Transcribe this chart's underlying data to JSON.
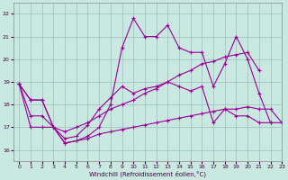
{
  "xlabel": "Windchill (Refroidissement éolien,°C)",
  "xlim": [
    -0.5,
    23
  ],
  "ylim": [
    15.5,
    22.5
  ],
  "yticks": [
    16,
    17,
    18,
    19,
    20,
    21,
    22
  ],
  "xticks": [
    0,
    1,
    2,
    3,
    4,
    5,
    6,
    7,
    8,
    9,
    10,
    11,
    12,
    13,
    14,
    15,
    16,
    17,
    18,
    19,
    20,
    21,
    22,
    23
  ],
  "background_color": "#c8e8e0",
  "grid_color": "#a0bcc0",
  "line_color": "#990099",
  "series": {
    "line1": [
      18.9,
      18.2,
      18.2,
      17.0,
      16.3,
      16.4,
      16.6,
      17.0,
      18.0,
      20.5,
      21.8,
      21.0,
      21.0,
      21.5,
      20.5,
      20.3,
      20.3,
      18.8,
      19.8,
      21.0,
      20.0,
      18.5,
      17.2,
      null
    ],
    "line2": [
      18.9,
      18.2,
      18.2,
      17.0,
      16.5,
      16.6,
      17.1,
      17.8,
      18.3,
      18.8,
      18.5,
      18.7,
      18.8,
      19.0,
      19.3,
      19.5,
      19.8,
      19.9,
      20.1,
      20.2,
      20.3,
      19.5,
      null,
      null
    ],
    "line3": [
      18.9,
      17.5,
      17.5,
      17.0,
      16.8,
      17.0,
      17.2,
      17.5,
      17.8,
      18.0,
      18.2,
      18.5,
      18.7,
      19.0,
      18.8,
      18.6,
      18.8,
      17.2,
      17.8,
      17.5,
      17.5,
      17.2,
      17.2,
      17.2
    ],
    "line4": [
      18.9,
      17.0,
      17.0,
      17.0,
      16.3,
      16.4,
      16.5,
      16.7,
      16.8,
      16.9,
      17.0,
      17.1,
      17.2,
      17.3,
      17.4,
      17.5,
      17.6,
      17.7,
      17.8,
      17.8,
      17.9,
      17.8,
      17.8,
      17.2
    ]
  }
}
